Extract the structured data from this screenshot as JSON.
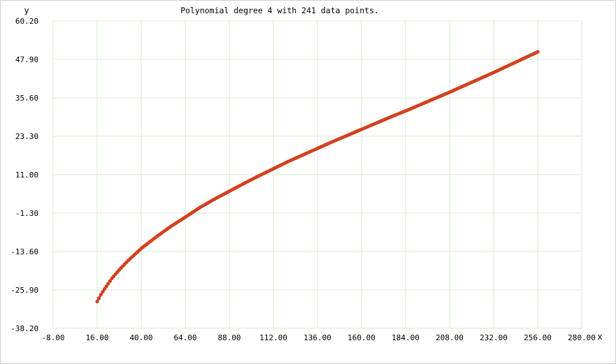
{
  "chart_data": {
    "type": "scatter",
    "title": "Polynomial degree 4 with 241 data points.",
    "xlabel": "x",
    "ylabel": "y",
    "xlim": [
      -8,
      280
    ],
    "ylim": [
      -38.2,
      60.2
    ],
    "x_ticks": [
      "-8.00",
      "16.00",
      "40.00",
      "64.00",
      "88.00",
      "112.00",
      "136.00",
      "160.00",
      "184.00",
      "208.00",
      "232.00",
      "256.00",
      "280.00"
    ],
    "y_ticks": [
      "60.20",
      "47.90",
      "35.60",
      "23.30",
      "11.00",
      "-1.30",
      "-13.60",
      "-25.90",
      "-38.20"
    ],
    "grid": true,
    "colors": {
      "grid": "#d4ecd0",
      "line": "#4a4a8c",
      "points": "#d2401f"
    },
    "series": [
      {
        "x": [
          16,
          18,
          20,
          24,
          28,
          32,
          40,
          48,
          56,
          64,
          72,
          80,
          88,
          96,
          104,
          112,
          120,
          128,
          136,
          144,
          152,
          160,
          168,
          176,
          184,
          192,
          200,
          208,
          216,
          224,
          232,
          240,
          248,
          256
        ],
        "values": [
          -29.6,
          -27.4,
          -25.6,
          -22.2,
          -19.5,
          -17.0,
          -12.6,
          -9.0,
          -5.6,
          -2.6,
          0.5,
          3.2,
          5.7,
          8.2,
          10.6,
          12.9,
          15.2,
          17.3,
          19.4,
          21.5,
          23.5,
          25.5,
          27.5,
          29.5,
          31.4,
          33.4,
          35.4,
          37.4,
          39.5,
          41.6,
          43.7,
          45.9,
          48.1,
          50.3
        ]
      }
    ]
  }
}
